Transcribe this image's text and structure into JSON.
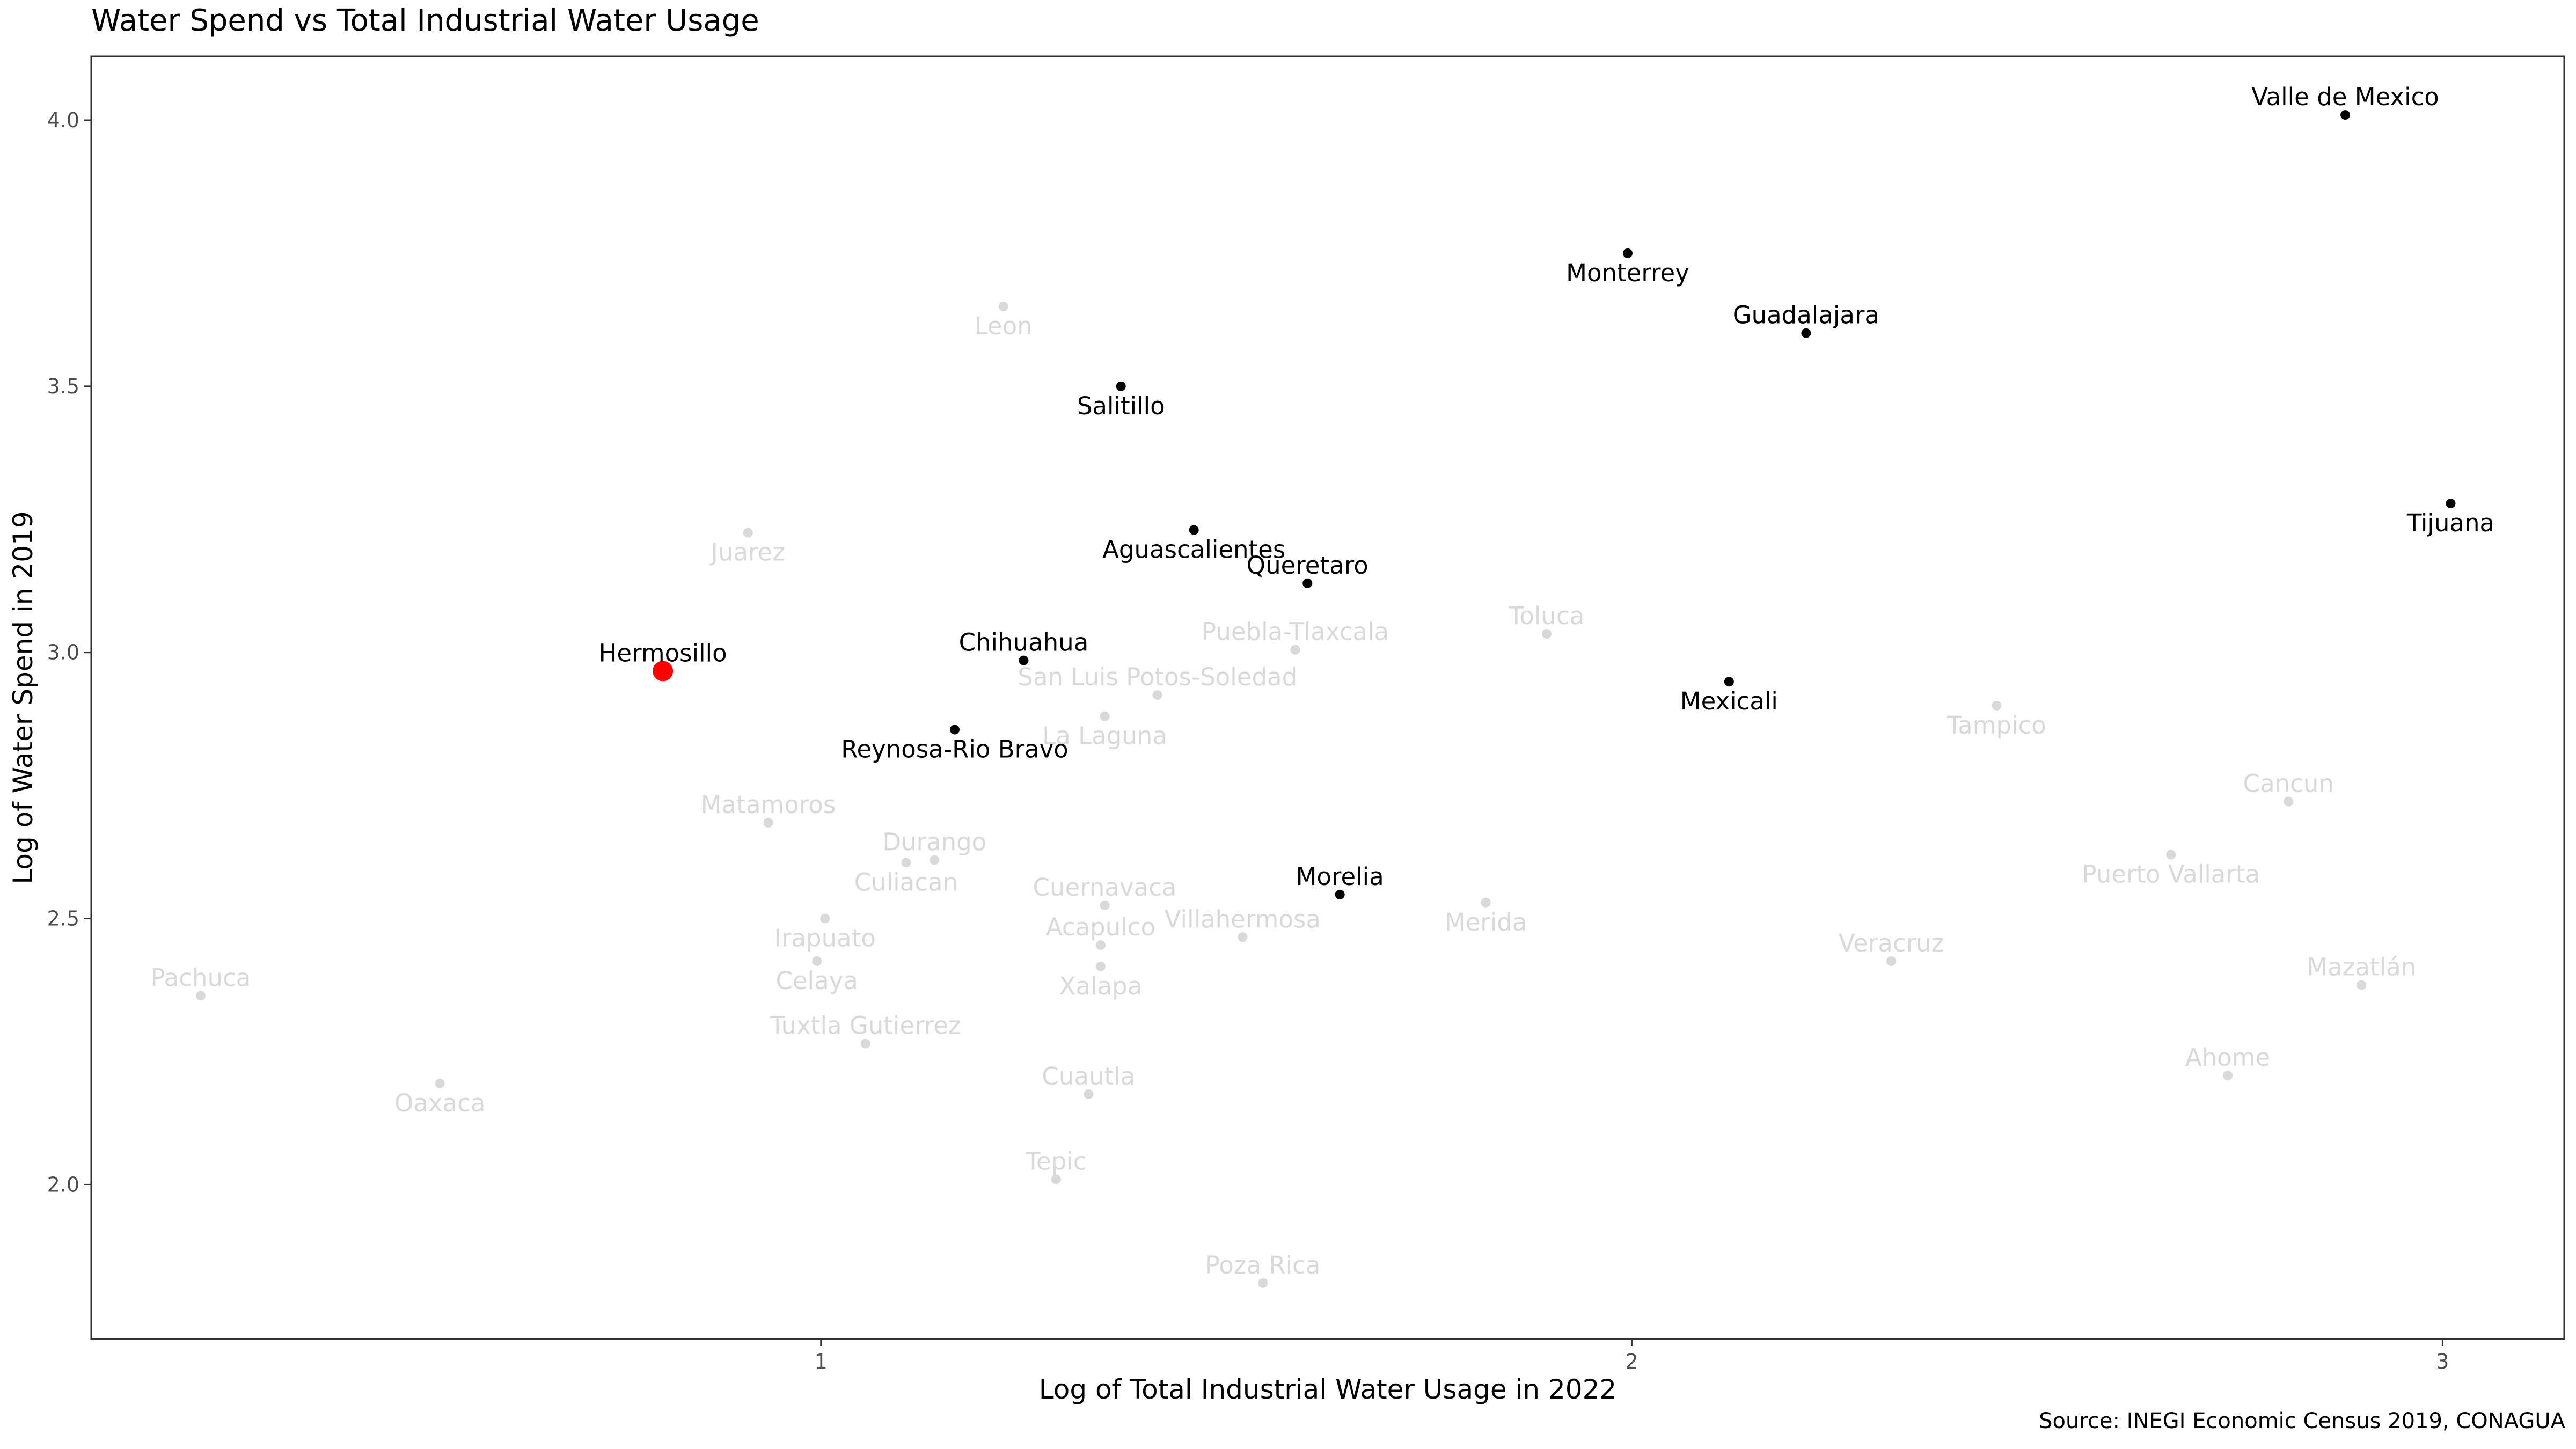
{
  "chart_data": {
    "type": "scatter",
    "title": "Water Spend vs Total Industrial Water Usage",
    "xlabel": "Log of Total Industrial Water Usage in 2022",
    "ylabel": "Log of Water Spend in 2019",
    "source": "Source: INEGI Economic Census 2019, CONAGUA",
    "xlim": [
      0.1,
      3.15
    ],
    "ylim": [
      1.71,
      4.12
    ],
    "x_ticks": [
      {
        "value": 1,
        "label": "1"
      },
      {
        "value": 2,
        "label": "2"
      },
      {
        "value": 3,
        "label": "3"
      }
    ],
    "y_ticks": [
      {
        "value": 2.0,
        "label": "2.0"
      },
      {
        "value": 2.5,
        "label": "2.5"
      },
      {
        "value": 3.0,
        "label": "3.0"
      },
      {
        "value": 3.5,
        "label": "3.5"
      },
      {
        "value": 4.0,
        "label": "4.0"
      }
    ],
    "grid": false,
    "colors": {
      "highlight": "#ff0000",
      "emphasized": "#000000",
      "muted": "#d9d9d9",
      "muted_text": "#d9d9d9"
    },
    "points": [
      {
        "name": "Hermosillo",
        "x": 0.805,
        "y": 2.965,
        "group": "highlight",
        "label_pos": "above"
      },
      {
        "name": "Valle de Mexico",
        "x": 2.88,
        "y": 4.01,
        "group": "emphasized",
        "label_pos": "above"
      },
      {
        "name": "Monterrey",
        "x": 1.995,
        "y": 3.75,
        "group": "emphasized",
        "label_pos": "below"
      },
      {
        "name": "Guadalajara",
        "x": 2.215,
        "y": 3.6,
        "group": "emphasized",
        "label_pos": "above"
      },
      {
        "name": "Salitillo",
        "x": 1.37,
        "y": 3.5,
        "group": "emphasized",
        "label_pos": "below"
      },
      {
        "name": "Tijuana",
        "x": 3.01,
        "y": 3.28,
        "group": "emphasized",
        "label_pos": "below"
      },
      {
        "name": "Aguascalientes",
        "x": 1.46,
        "y": 3.23,
        "group": "emphasized",
        "label_pos": "below"
      },
      {
        "name": "Queretaro",
        "x": 1.6,
        "y": 3.13,
        "group": "emphasized",
        "label_pos": "above"
      },
      {
        "name": "Chihuahua",
        "x": 1.25,
        "y": 2.985,
        "group": "emphasized",
        "label_pos": "above"
      },
      {
        "name": "Mexicali",
        "x": 2.12,
        "y": 2.945,
        "group": "emphasized",
        "label_pos": "below"
      },
      {
        "name": "Reynosa-Rio Bravo",
        "x": 1.165,
        "y": 2.855,
        "group": "emphasized",
        "label_pos": "below"
      },
      {
        "name": "Morelia",
        "x": 1.64,
        "y": 2.545,
        "group": "emphasized",
        "label_pos": "above"
      },
      {
        "name": "Leon",
        "x": 1.225,
        "y": 3.65,
        "group": "muted",
        "label_pos": "below"
      },
      {
        "name": "Juarez",
        "x": 0.91,
        "y": 3.225,
        "group": "muted",
        "label_pos": "below"
      },
      {
        "name": "Puebla-Tlaxcala",
        "x": 1.585,
        "y": 3.005,
        "group": "muted",
        "label_pos": "above"
      },
      {
        "name": "Toluca",
        "x": 1.895,
        "y": 3.035,
        "group": "muted",
        "label_pos": "above"
      },
      {
        "name": "San Luis Potos-Soledad",
        "x": 1.415,
        "y": 2.92,
        "group": "muted",
        "label_pos": "above"
      },
      {
        "name": "La Laguna",
        "x": 1.35,
        "y": 2.88,
        "group": "muted",
        "label_pos": "below"
      },
      {
        "name": "Tampico",
        "x": 2.45,
        "y": 2.9,
        "group": "muted",
        "label_pos": "below"
      },
      {
        "name": "Matamoros",
        "x": 0.935,
        "y": 2.68,
        "group": "muted",
        "label_pos": "above"
      },
      {
        "name": "Cancun",
        "x": 2.81,
        "y": 2.72,
        "group": "muted",
        "label_pos": "above"
      },
      {
        "name": "Durango",
        "x": 1.14,
        "y": 2.61,
        "group": "muted",
        "label_pos": "above"
      },
      {
        "name": "Culiacan",
        "x": 1.105,
        "y": 2.605,
        "group": "muted",
        "label_pos": "below"
      },
      {
        "name": "Puerto Vallarta",
        "x": 2.665,
        "y": 2.62,
        "group": "muted",
        "label_pos": "below"
      },
      {
        "name": "Cuernavaca",
        "x": 1.35,
        "y": 2.525,
        "group": "muted",
        "label_pos": "above"
      },
      {
        "name": "Merida",
        "x": 1.82,
        "y": 2.53,
        "group": "muted",
        "label_pos": "below"
      },
      {
        "name": "Irapuato",
        "x": 1.005,
        "y": 2.5,
        "group": "muted",
        "label_pos": "below"
      },
      {
        "name": "Villahermosa",
        "x": 1.52,
        "y": 2.465,
        "group": "muted",
        "label_pos": "above"
      },
      {
        "name": "Acapulco",
        "x": 1.345,
        "y": 2.45,
        "group": "muted",
        "label_pos": "above"
      },
      {
        "name": "Celaya",
        "x": 0.995,
        "y": 2.42,
        "group": "muted",
        "label_pos": "below"
      },
      {
        "name": "Xalapa",
        "x": 1.345,
        "y": 2.41,
        "group": "muted",
        "label_pos": "below"
      },
      {
        "name": "Veracruz",
        "x": 2.32,
        "y": 2.42,
        "group": "muted",
        "label_pos": "above"
      },
      {
        "name": "Mazatlán",
        "x": 2.9,
        "y": 2.375,
        "group": "muted",
        "label_pos": "above"
      },
      {
        "name": "Pachuca",
        "x": 0.235,
        "y": 2.355,
        "group": "muted",
        "label_pos": "above"
      },
      {
        "name": "Tuxtla Gutierrez",
        "x": 1.055,
        "y": 2.265,
        "group": "muted",
        "label_pos": "above"
      },
      {
        "name": "Ahome",
        "x": 2.735,
        "y": 2.205,
        "group": "muted",
        "label_pos": "above"
      },
      {
        "name": "Oaxaca",
        "x": 0.53,
        "y": 2.19,
        "group": "muted",
        "label_pos": "below"
      },
      {
        "name": "Cuautla",
        "x": 1.33,
        "y": 2.17,
        "group": "muted",
        "label_pos": "above"
      },
      {
        "name": "Tepic",
        "x": 1.29,
        "y": 2.01,
        "group": "muted",
        "label_pos": "above"
      },
      {
        "name": "Poza Rica",
        "x": 1.545,
        "y": 1.815,
        "group": "muted",
        "label_pos": "above"
      }
    ]
  }
}
